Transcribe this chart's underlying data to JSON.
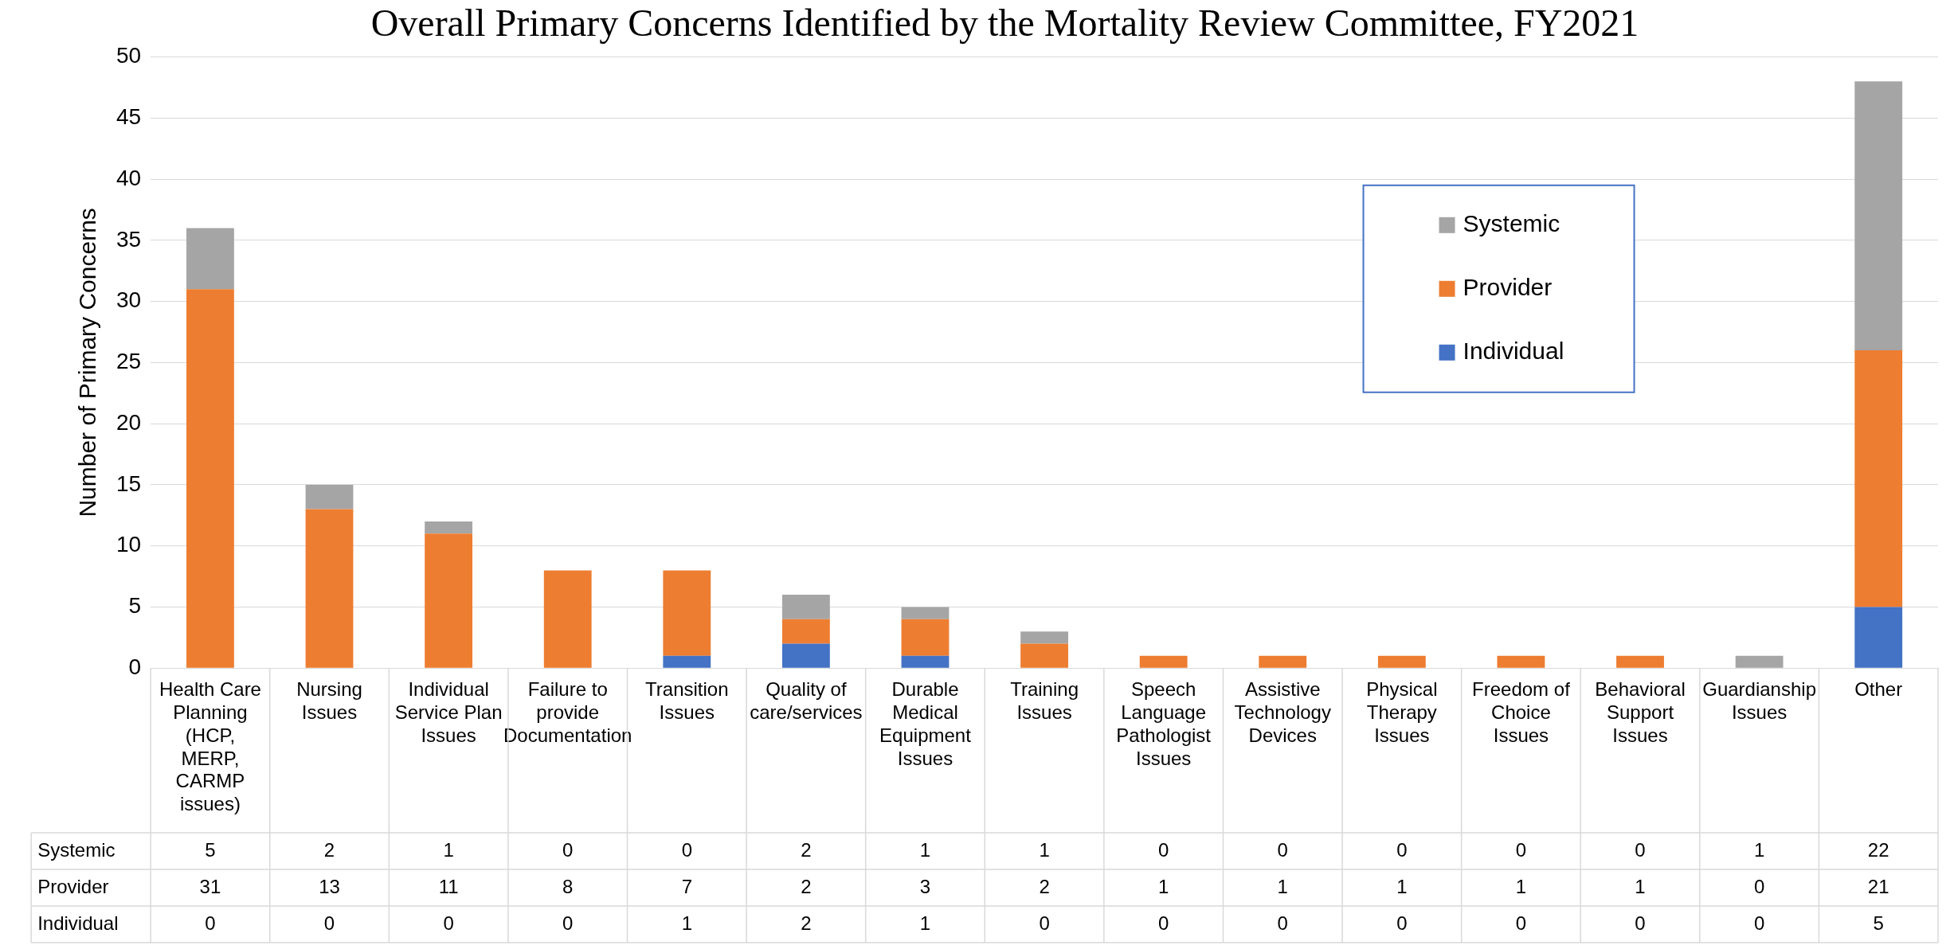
{
  "chart_data": {
    "type": "bar",
    "title": "Overall Primary Concerns Identified by the Mortality Review Committee, FY2021",
    "ylabel": "Number of Primary Concerns",
    "categories": [
      "Health Care Planning (HCP, MERP, CARMP issues)",
      "Nursing Issues",
      "Individual Service Plan Issues",
      "Failure to provide Documentation",
      "Transition Issues",
      "Quality of care/services",
      "Durable Medical Equipment Issues",
      "Training Issues",
      "Speech Language Pathologist Issues",
      "Assistive Technology Devices",
      "Physical Therapy Issues",
      "Freedom of Choice Issues",
      "Behavioral Support Issues",
      "Guardianship Issues",
      "Other"
    ],
    "series": [
      {
        "name": "Individual",
        "color": "#4472c4",
        "values": [
          0,
          0,
          0,
          0,
          1,
          2,
          1,
          0,
          0,
          0,
          0,
          0,
          0,
          0,
          5
        ]
      },
      {
        "name": "Provider",
        "color": "#ed7d31",
        "values": [
          31,
          13,
          11,
          8,
          7,
          2,
          3,
          2,
          1,
          1,
          1,
          1,
          1,
          0,
          21
        ]
      },
      {
        "name": "Systemic",
        "color": "#a5a5a5",
        "values": [
          5,
          2,
          1,
          0,
          0,
          2,
          1,
          1,
          0,
          0,
          0,
          0,
          0,
          1,
          22
        ]
      }
    ],
    "stacked": true,
    "ylim": [
      0,
      50
    ],
    "yticks": [
      0,
      5,
      10,
      15,
      20,
      25,
      30,
      35,
      40,
      45,
      50
    ],
    "grid": "y",
    "legend": "top right",
    "data_labels": true
  }
}
